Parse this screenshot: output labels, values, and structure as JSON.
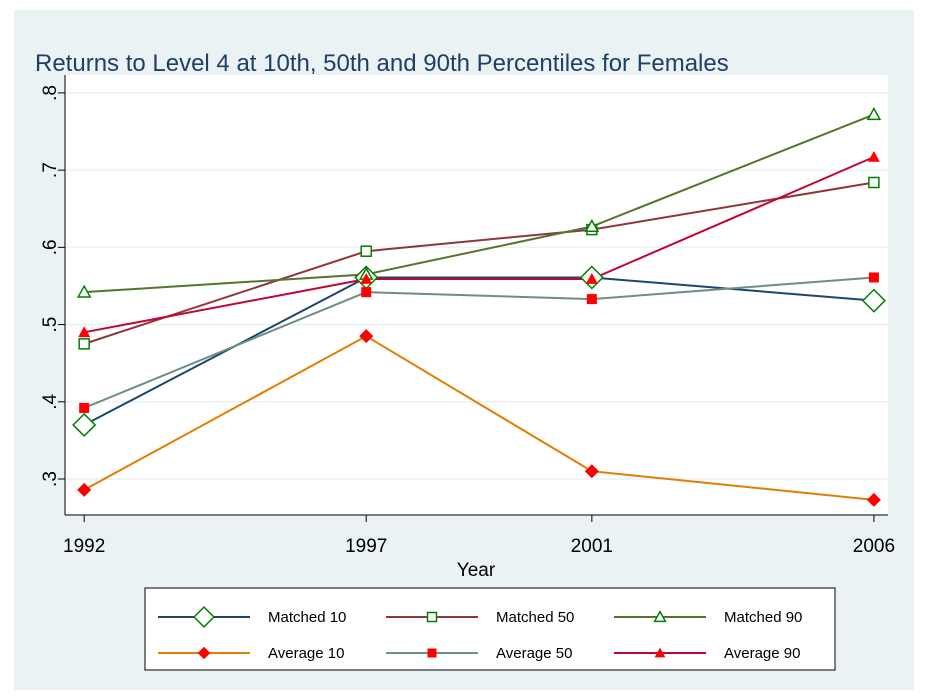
{
  "chart_data": {
    "type": "line",
    "title": "Returns to Level 4 at 10th, 50th and 90th Percentiles for Females",
    "x_label": "Year",
    "x": [
      1992,
      1997,
      2001,
      2006
    ],
    "xlim": [
      1991.66,
      2006.25
    ],
    "xticks": [
      1992,
      1997,
      2001,
      2006
    ],
    "ylim": [
      0.2534,
      0.8232
    ],
    "yticks": [
      {
        "value": 0.3,
        "label": ".3"
      },
      {
        "value": 0.4,
        "label": ".4"
      },
      {
        "value": 0.5,
        "label": ".5"
      },
      {
        "value": 0.6,
        "label": ".6"
      },
      {
        "value": 0.7,
        "label": ".7"
      },
      {
        "value": 0.8,
        "label": ".8"
      }
    ],
    "grid": true,
    "legend": "bottom",
    "series": [
      {
        "name": "Matched 10",
        "color": "#1a476f",
        "marker": "diamond-hollow",
        "marker_color": "#008000",
        "values": [
          0.37,
          0.561,
          0.561,
          0.531
        ]
      },
      {
        "name": "Matched 50",
        "color": "#90353b",
        "marker": "square-hollow",
        "marker_color": "#008000",
        "values": [
          0.475,
          0.595,
          0.623,
          0.684
        ]
      },
      {
        "name": "Matched 90",
        "color": "#55752f",
        "marker": "triangle-hollow",
        "marker_color": "#008000",
        "values": [
          0.542,
          0.565,
          0.627,
          0.772
        ]
      },
      {
        "name": "Average 10",
        "color": "#e37e00",
        "marker": "diamond",
        "marker_color": "#ff0000",
        "values": [
          0.286,
          0.485,
          0.31,
          0.273
        ]
      },
      {
        "name": "Average 50",
        "color": "#6e8e84",
        "marker": "square",
        "marker_color": "#ff0000",
        "values": [
          0.392,
          0.542,
          0.533,
          0.561
        ]
      },
      {
        "name": "Average 90",
        "color": "#c10534",
        "marker": "triangle",
        "marker_color": "#ff0000",
        "values": [
          0.49,
          0.559,
          0.559,
          0.717
        ]
      }
    ]
  }
}
